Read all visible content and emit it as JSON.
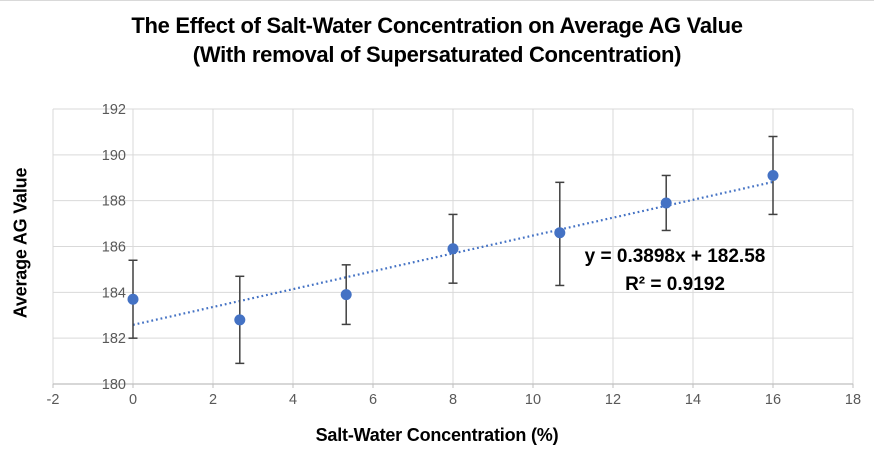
{
  "chart_data": {
    "type": "scatter",
    "title_line1": "The Effect of Salt-Water Concentration on Average AG Value",
    "title_line2": "(With removal of Supersaturated Concentration)",
    "xlabel": "Salt-Water Concentration (%)",
    "ylabel": "Average AG Value",
    "xlim": [
      -2,
      18
    ],
    "ylim": [
      180,
      192
    ],
    "x_ticks": [
      -2,
      0,
      2,
      4,
      6,
      8,
      10,
      12,
      14,
      16,
      18
    ],
    "y_ticks": [
      180,
      182,
      184,
      186,
      188,
      190,
      192
    ],
    "grid": true,
    "legend": "none",
    "series": [
      {
        "name": "Average AG Value",
        "x": [
          0,
          2.67,
          5.33,
          8,
          10.67,
          13.33,
          16
        ],
        "y": [
          183.7,
          182.8,
          183.9,
          185.9,
          186.6,
          187.9,
          189.1
        ],
        "error_low": [
          182.0,
          180.9,
          182.6,
          184.4,
          184.3,
          186.7,
          187.4
        ],
        "error_high": [
          185.4,
          184.7,
          185.2,
          187.4,
          188.8,
          189.1,
          190.8
        ],
        "marker": "circle"
      }
    ],
    "trendline": {
      "slope": 0.3898,
      "intercept": 182.58,
      "x_start": 0,
      "x_end": 16,
      "style": "dotted",
      "equation_label": "y = 0.3898x + 182.58",
      "r_squared_label": "R² = 0.9192"
    },
    "colors": {
      "marker": "#4472C4",
      "trendline": "#4472C4",
      "error_bar": "#404040",
      "gridline": "#D9D9D9",
      "axis_line": "#BFBFBF",
      "tick_label": "#595959",
      "title": "#000000",
      "equation_text": "#000000"
    }
  }
}
